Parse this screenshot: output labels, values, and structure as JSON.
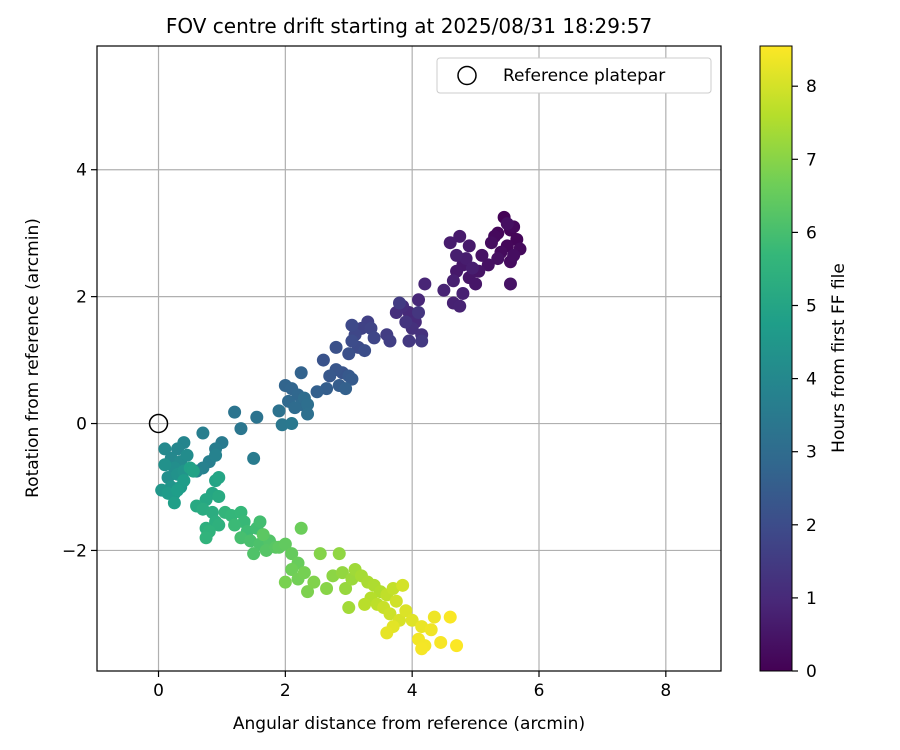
{
  "chart_data": {
    "type": "scatter",
    "title": "FOV centre drift starting at 2025/08/31 18:29:57",
    "xlabel": "Angular distance from reference (arcmin)",
    "ylabel": "Rotation from reference (arcmin)",
    "xlim": [
      -0.97,
      8.87
    ],
    "ylim": [
      -3.9,
      5.95
    ],
    "xticks": [
      0,
      2,
      4,
      6,
      8
    ],
    "yticks": [
      -2,
      0,
      2,
      4
    ],
    "xtick_labels": [
      "0",
      "2",
      "4",
      "6",
      "8"
    ],
    "ytick_labels": [
      "−2",
      "0",
      "2",
      "4"
    ],
    "grid": true,
    "legend": {
      "placement": "top-right",
      "label": "Reference platepar"
    },
    "reference_point": [
      0,
      0
    ],
    "colorbar": {
      "label": "Hours from first FF file",
      "range": [
        0,
        8.55
      ],
      "ticks": [
        0,
        1,
        2,
        3,
        4,
        5,
        6,
        7,
        8
      ],
      "tick_labels": [
        "0",
        "1",
        "2",
        "3",
        "4",
        "5",
        "6",
        "7",
        "8"
      ],
      "colormap": "viridis",
      "colors": [
        "#440154",
        "#482878",
        "#3e4989",
        "#31688e",
        "#26828e",
        "#1f9e89",
        "#35b779",
        "#6ece58",
        "#b5de2b",
        "#fde725"
      ]
    },
    "points": [
      [
        5.45,
        3.25,
        0.05
      ],
      [
        5.55,
        3.05,
        0.08
      ],
      [
        5.65,
        2.9,
        0.1
      ],
      [
        5.35,
        3.0,
        0.12
      ],
      [
        5.5,
        2.8,
        0.15
      ],
      [
        5.6,
        3.1,
        0.18
      ],
      [
        5.3,
        2.95,
        0.2
      ],
      [
        5.7,
        2.75,
        0.22
      ],
      [
        5.4,
        2.7,
        0.25
      ],
      [
        5.55,
        2.55,
        0.28
      ],
      [
        5.25,
        2.85,
        0.3
      ],
      [
        5.6,
        2.65,
        0.32
      ],
      [
        5.5,
        3.15,
        0.35
      ],
      [
        5.35,
        2.6,
        0.38
      ],
      [
        5.2,
        2.5,
        0.4
      ],
      [
        5.1,
        2.65,
        0.42
      ],
      [
        5.55,
        2.2,
        0.45
      ],
      [
        5.05,
        2.4,
        0.48
      ],
      [
        4.9,
        2.3,
        0.5
      ],
      [
        5.0,
        2.2,
        0.52
      ],
      [
        4.8,
        2.5,
        0.55
      ],
      [
        4.7,
        2.4,
        0.58
      ],
      [
        4.9,
        2.8,
        0.6
      ],
      [
        4.75,
        2.95,
        0.62
      ],
      [
        4.6,
        2.85,
        0.65
      ],
      [
        4.85,
        2.6,
        0.68
      ],
      [
        4.95,
        2.45,
        0.7
      ],
      [
        4.7,
        2.65,
        0.72
      ],
      [
        4.65,
        2.25,
        0.75
      ],
      [
        4.8,
        2.05,
        0.78
      ],
      [
        4.65,
        1.9,
        0.8
      ],
      [
        4.75,
        1.85,
        0.82
      ],
      [
        4.5,
        2.1,
        0.85
      ],
      [
        4.2,
        2.2,
        0.9
      ],
      [
        4.1,
        1.95,
        0.95
      ],
      [
        3.95,
        1.75,
        1.0
      ],
      [
        4.05,
        1.6,
        1.05
      ],
      [
        3.85,
        1.85,
        1.1
      ],
      [
        3.75,
        1.75,
        1.15
      ],
      [
        4.0,
        1.5,
        1.2
      ],
      [
        4.15,
        1.4,
        1.25
      ],
      [
        3.9,
        1.6,
        1.3
      ],
      [
        4.1,
        1.75,
        1.35
      ],
      [
        3.95,
        1.3,
        1.4
      ],
      [
        4.15,
        1.3,
        1.45
      ],
      [
        3.8,
        1.9,
        1.5
      ],
      [
        3.6,
        1.4,
        1.55
      ],
      [
        3.65,
        1.3,
        1.6
      ],
      [
        3.3,
        1.6,
        1.65
      ],
      [
        3.2,
        1.5,
        1.7
      ],
      [
        3.35,
        1.5,
        1.75
      ],
      [
        3.4,
        1.35,
        1.8
      ],
      [
        3.1,
        1.4,
        1.85
      ],
      [
        3.05,
        1.55,
        1.9
      ],
      [
        3.15,
        1.2,
        1.95
      ],
      [
        3.05,
        1.3,
        2.0
      ],
      [
        3.25,
        1.15,
        2.05
      ],
      [
        3.0,
        1.1,
        2.1
      ],
      [
        2.8,
        1.2,
        2.15
      ],
      [
        2.6,
        1.0,
        2.2
      ],
      [
        2.9,
        0.8,
        2.25
      ],
      [
        2.8,
        0.85,
        2.3
      ],
      [
        2.7,
        0.75,
        2.35
      ],
      [
        3.0,
        0.75,
        2.4
      ],
      [
        3.05,
        0.7,
        2.45
      ],
      [
        2.85,
        0.6,
        2.5
      ],
      [
        2.65,
        0.55,
        2.55
      ],
      [
        2.5,
        0.5,
        2.6
      ],
      [
        2.95,
        0.55,
        2.65
      ],
      [
        2.25,
        0.8,
        2.7
      ],
      [
        2.0,
        0.6,
        2.75
      ],
      [
        2.1,
        0.55,
        2.8
      ],
      [
        2.2,
        0.45,
        2.85
      ],
      [
        2.05,
        0.35,
        2.9
      ],
      [
        2.25,
        0.3,
        2.95
      ],
      [
        2.15,
        0.25,
        3.0
      ],
      [
        2.3,
        0.4,
        3.05
      ],
      [
        2.35,
        0.3,
        3.1
      ],
      [
        2.35,
        0.15,
        3.15
      ],
      [
        1.9,
        0.2,
        3.2
      ],
      [
        1.55,
        0.1,
        3.25
      ],
      [
        1.2,
        0.18,
        3.3
      ],
      [
        1.3,
        -0.08,
        3.35
      ],
      [
        1.95,
        -0.02,
        3.4
      ],
      [
        2.1,
        0.0,
        3.45
      ],
      [
        1.0,
        -0.3,
        3.5
      ],
      [
        1.5,
        -0.55,
        3.55
      ],
      [
        0.9,
        -0.4,
        3.6
      ],
      [
        0.7,
        -0.15,
        3.65
      ],
      [
        0.8,
        -0.6,
        3.7
      ],
      [
        0.7,
        -0.7,
        3.75
      ],
      [
        0.9,
        -0.5,
        3.8
      ],
      [
        0.6,
        -0.75,
        3.85
      ],
      [
        0.4,
        -0.3,
        3.9
      ],
      [
        0.3,
        -0.4,
        3.95
      ],
      [
        0.2,
        -0.55,
        4.0
      ],
      [
        0.1,
        -0.4,
        4.05
      ],
      [
        0.35,
        -0.6,
        4.1
      ],
      [
        0.45,
        -0.5,
        4.15
      ],
      [
        0.25,
        -0.7,
        4.2
      ],
      [
        0.15,
        -0.85,
        4.25
      ],
      [
        0.1,
        -0.65,
        4.3
      ],
      [
        0.3,
        -0.8,
        4.35
      ],
      [
        0.4,
        -0.75,
        4.4
      ],
      [
        0.2,
        -1.0,
        4.45
      ],
      [
        0.05,
        -1.05,
        4.5
      ],
      [
        0.25,
        -1.1,
        4.55
      ],
      [
        0.35,
        -1.0,
        4.6
      ],
      [
        0.15,
        -1.1,
        4.65
      ],
      [
        0.4,
        -0.9,
        4.7
      ],
      [
        0.3,
        -1.05,
        4.75
      ],
      [
        0.25,
        -1.25,
        4.8
      ],
      [
        0.5,
        -0.7,
        4.85
      ],
      [
        0.55,
        -0.75,
        4.9
      ],
      [
        0.9,
        -0.9,
        4.95
      ],
      [
        0.95,
        -0.85,
        5.0
      ],
      [
        0.85,
        -1.1,
        5.05
      ],
      [
        0.75,
        -1.2,
        5.1
      ],
      [
        0.6,
        -1.3,
        5.15
      ],
      [
        0.95,
        -1.15,
        5.2
      ],
      [
        0.7,
        -1.35,
        5.25
      ],
      [
        0.85,
        -1.4,
        5.3
      ],
      [
        0.9,
        -1.55,
        5.35
      ],
      [
        0.75,
        -1.65,
        5.4
      ],
      [
        0.95,
        -1.6,
        5.45
      ],
      [
        0.8,
        -1.7,
        5.5
      ],
      [
        0.75,
        -1.8,
        5.55
      ],
      [
        1.05,
        -1.4,
        5.6
      ],
      [
        1.15,
        -1.45,
        5.65
      ],
      [
        1.3,
        -1.4,
        5.7
      ],
      [
        1.35,
        -1.55,
        5.75
      ],
      [
        1.2,
        -1.6,
        5.8
      ],
      [
        1.4,
        -1.7,
        5.85
      ],
      [
        1.55,
        -1.65,
        5.9
      ],
      [
        1.6,
        -1.55,
        5.95
      ],
      [
        1.3,
        -1.8,
        6.0
      ],
      [
        1.45,
        -1.85,
        6.05
      ],
      [
        1.6,
        -1.9,
        6.1
      ],
      [
        1.5,
        -2.05,
        6.15
      ],
      [
        1.75,
        -1.85,
        6.2
      ],
      [
        1.7,
        -2.0,
        6.25
      ],
      [
        1.85,
        -1.95,
        6.3
      ],
      [
        1.65,
        -1.75,
        6.35
      ],
      [
        1.9,
        -1.95,
        6.4
      ],
      [
        2.0,
        -1.9,
        6.45
      ],
      [
        2.1,
        -2.05,
        6.5
      ],
      [
        2.2,
        -2.2,
        6.55
      ],
      [
        2.25,
        -1.65,
        6.6
      ],
      [
        2.1,
        -2.3,
        6.65
      ],
      [
        2.2,
        -2.45,
        6.7
      ],
      [
        2.3,
        -2.35,
        6.75
      ],
      [
        2.0,
        -2.5,
        6.8
      ],
      [
        2.35,
        -2.65,
        6.85
      ],
      [
        2.45,
        -2.5,
        6.9
      ],
      [
        2.55,
        -2.05,
        6.95
      ],
      [
        2.65,
        -2.6,
        7.0
      ],
      [
        2.75,
        -2.4,
        7.05
      ],
      [
        2.85,
        -2.05,
        7.1
      ],
      [
        2.9,
        -2.35,
        7.15
      ],
      [
        2.95,
        -2.6,
        7.2
      ],
      [
        3.05,
        -2.45,
        7.25
      ],
      [
        3.1,
        -2.3,
        7.3
      ],
      [
        3.0,
        -2.9,
        7.35
      ],
      [
        3.2,
        -2.4,
        7.4
      ],
      [
        3.3,
        -2.5,
        7.45
      ],
      [
        3.4,
        -2.55,
        7.5
      ],
      [
        3.5,
        -2.65,
        7.55
      ],
      [
        3.35,
        -2.75,
        7.6
      ],
      [
        3.25,
        -2.85,
        7.65
      ],
      [
        3.45,
        -2.85,
        7.7
      ],
      [
        3.6,
        -2.7,
        7.75
      ],
      [
        3.7,
        -2.6,
        7.8
      ],
      [
        3.55,
        -2.9,
        7.85
      ],
      [
        3.65,
        -3.0,
        7.9
      ],
      [
        3.75,
        -2.8,
        7.95
      ],
      [
        3.85,
        -2.55,
        8.0
      ],
      [
        3.8,
        -3.1,
        8.05
      ],
      [
        3.9,
        -2.95,
        8.1
      ],
      [
        4.0,
        -3.1,
        8.15
      ],
      [
        3.7,
        -3.2,
        8.2
      ],
      [
        3.6,
        -3.3,
        8.25
      ],
      [
        4.15,
        -3.2,
        8.3
      ],
      [
        4.35,
        -3.05,
        8.35
      ],
      [
        4.3,
        -3.25,
        8.38
      ],
      [
        4.1,
        -3.4,
        8.4
      ],
      [
        4.2,
        -3.5,
        8.42
      ],
      [
        4.15,
        -3.55,
        8.45
      ],
      [
        4.45,
        -3.45,
        8.47
      ],
      [
        4.6,
        -3.05,
        8.5
      ],
      [
        4.7,
        -3.5,
        8.53
      ]
    ]
  }
}
